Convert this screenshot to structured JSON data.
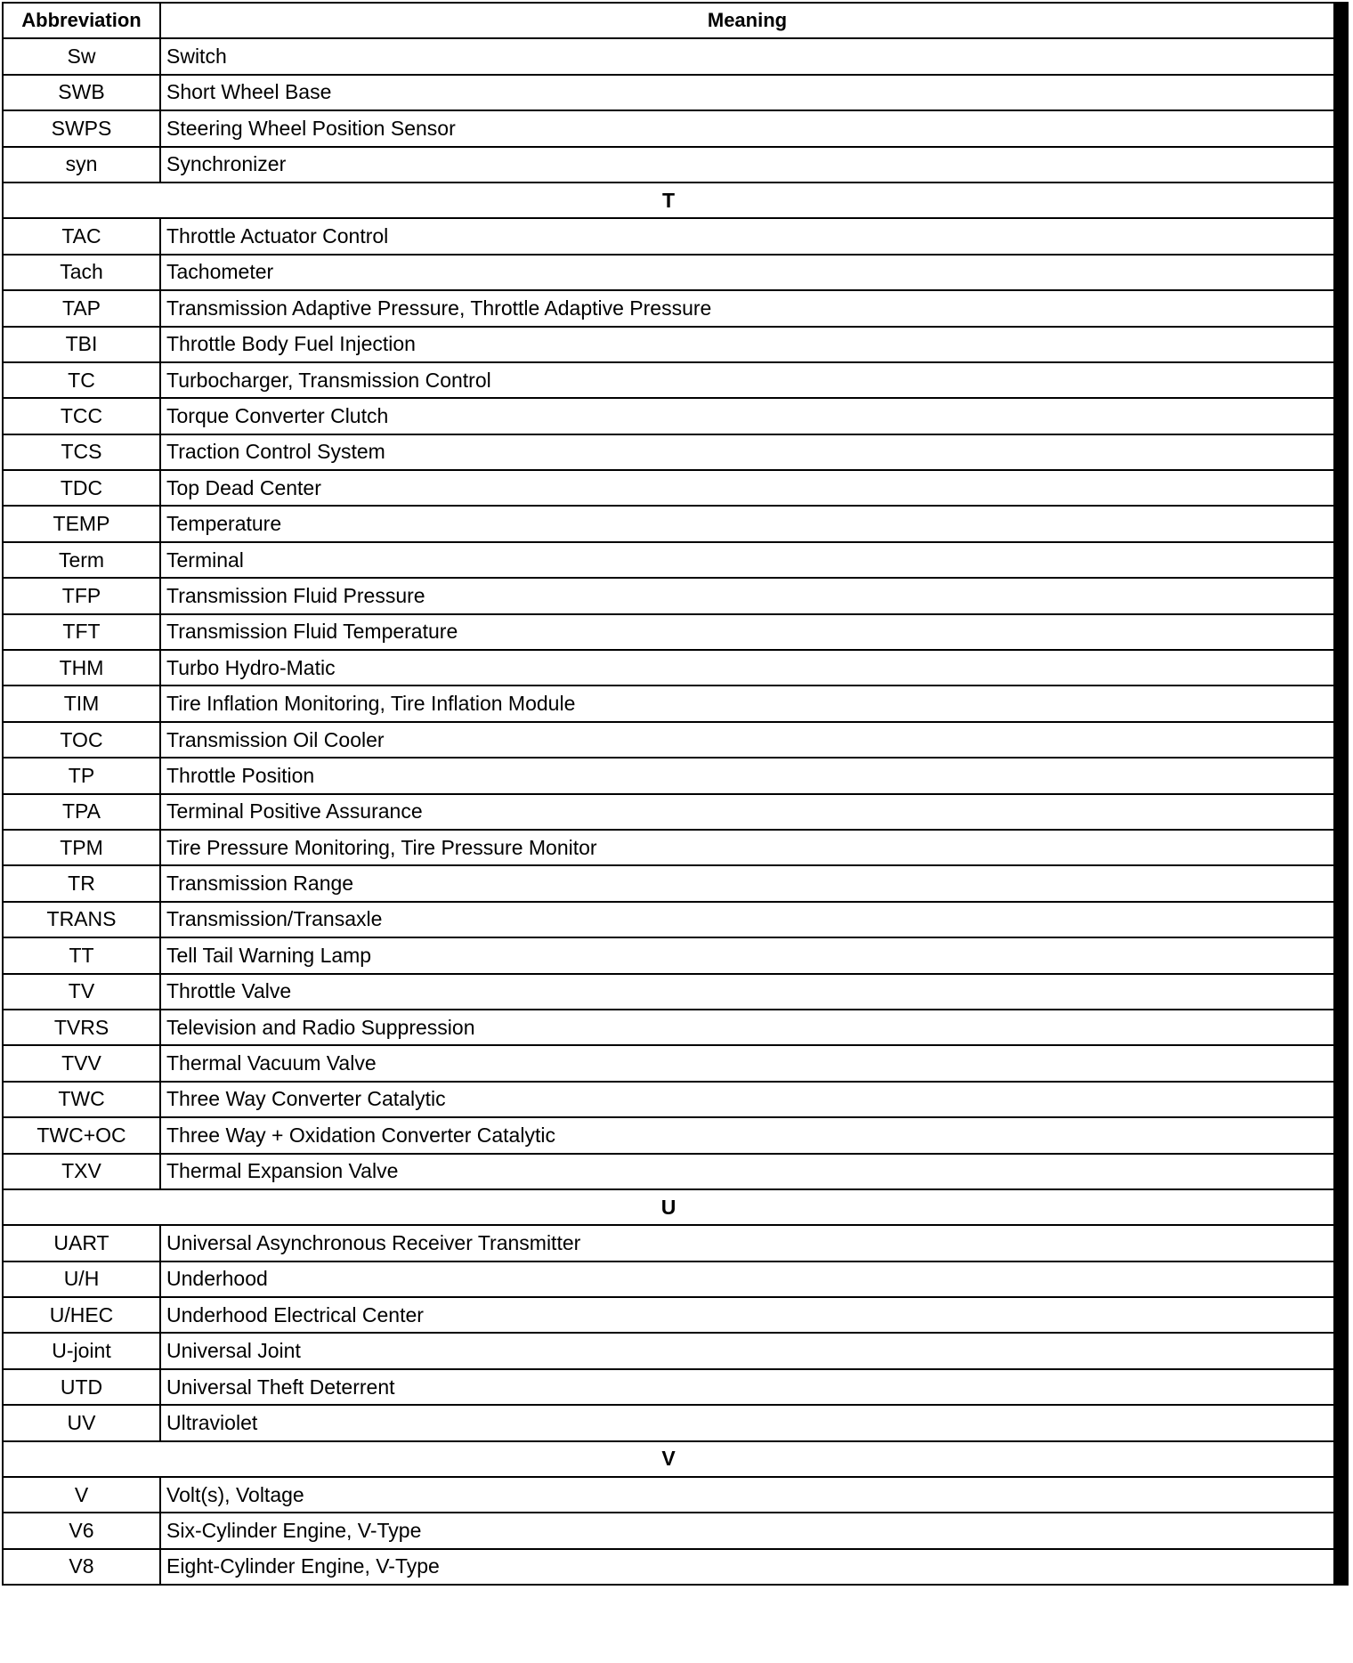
{
  "header": {
    "abbreviation": "Abbreviation",
    "meaning": "Meaning"
  },
  "rows": [
    {
      "abbr": "Sw",
      "meaning": "Switch"
    },
    {
      "abbr": "SWB",
      "meaning": "Short Wheel Base"
    },
    {
      "abbr": "SWPS",
      "meaning": "Steering Wheel Position Sensor"
    },
    {
      "abbr": "syn",
      "meaning": "Synchronizer"
    },
    {
      "section": "T"
    },
    {
      "abbr": "TAC",
      "meaning": "Throttle Actuator Control"
    },
    {
      "abbr": "Tach",
      "meaning": "Tachometer"
    },
    {
      "abbr": "TAP",
      "meaning": "Transmission Adaptive Pressure, Throttle Adaptive Pressure"
    },
    {
      "abbr": "TBI",
      "meaning": "Throttle Body Fuel Injection"
    },
    {
      "abbr": "TC",
      "meaning": "Turbocharger, Transmission Control"
    },
    {
      "abbr": "TCC",
      "meaning": "Torque Converter Clutch"
    },
    {
      "abbr": "TCS",
      "meaning": "Traction Control System"
    },
    {
      "abbr": "TDC",
      "meaning": "Top Dead Center"
    },
    {
      "abbr": "TEMP",
      "meaning": "Temperature"
    },
    {
      "abbr": "Term",
      "meaning": "Terminal"
    },
    {
      "abbr": "TFP",
      "meaning": "Transmission Fluid Pressure"
    },
    {
      "abbr": "TFT",
      "meaning": "Transmission Fluid Temperature"
    },
    {
      "abbr": "THM",
      "meaning": "Turbo Hydro-Matic"
    },
    {
      "abbr": "TIM",
      "meaning": "Tire Inflation Monitoring, Tire Inflation Module"
    },
    {
      "abbr": "TOC",
      "meaning": "Transmission Oil Cooler"
    },
    {
      "abbr": "TP",
      "meaning": "Throttle Position"
    },
    {
      "abbr": "TPA",
      "meaning": "Terminal Positive Assurance"
    },
    {
      "abbr": "TPM",
      "meaning": "Tire Pressure Monitoring, Tire Pressure Monitor"
    },
    {
      "abbr": "TR",
      "meaning": "Transmission Range"
    },
    {
      "abbr": "TRANS",
      "meaning": "Transmission/Transaxle"
    },
    {
      "abbr": "TT",
      "meaning": "Tell Tail Warning Lamp"
    },
    {
      "abbr": "TV",
      "meaning": "Throttle Valve"
    },
    {
      "abbr": "TVRS",
      "meaning": "Television and Radio Suppression"
    },
    {
      "abbr": "TVV",
      "meaning": "Thermal Vacuum Valve"
    },
    {
      "abbr": "TWC",
      "meaning": "Three Way Converter Catalytic"
    },
    {
      "abbr": "TWC+OC",
      "meaning": "Three Way + Oxidation Converter Catalytic"
    },
    {
      "abbr": "TXV",
      "meaning": "Thermal Expansion Valve"
    },
    {
      "section": "U"
    },
    {
      "abbr": "UART",
      "meaning": "Universal Asynchronous Receiver Transmitter"
    },
    {
      "abbr": "U/H",
      "meaning": "Underhood"
    },
    {
      "abbr": "U/HEC",
      "meaning": "Underhood Electrical Center"
    },
    {
      "abbr": "U-joint",
      "meaning": "Universal Joint"
    },
    {
      "abbr": "UTD",
      "meaning": "Universal Theft Deterrent"
    },
    {
      "abbr": "UV",
      "meaning": "Ultraviolet"
    },
    {
      "section": "V"
    },
    {
      "abbr": "V",
      "meaning": "Volt(s), Voltage"
    },
    {
      "abbr": "V6",
      "meaning": "Six-Cylinder Engine, V-Type"
    },
    {
      "abbr": "V8",
      "meaning": "Eight-Cylinder Engine, V-Type"
    }
  ]
}
